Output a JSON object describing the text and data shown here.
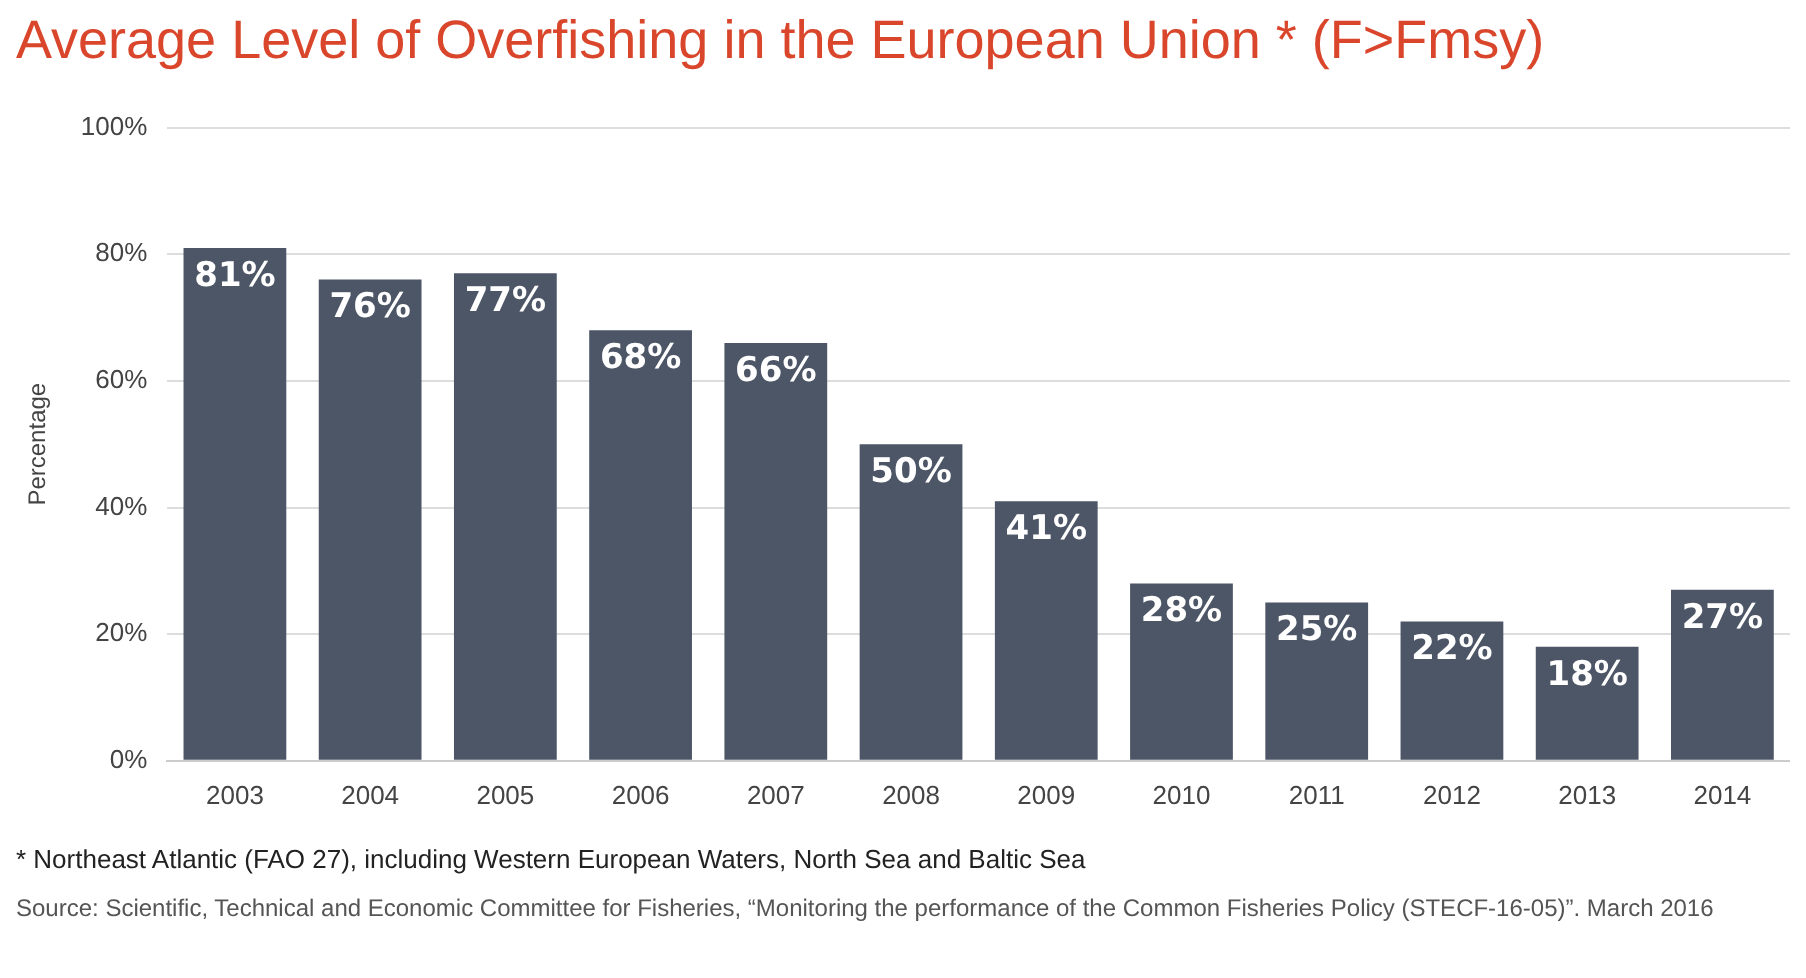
{
  "chart_data": {
    "type": "bar",
    "title": "Average Level of Overfishing in the European Union * (F>Fmsy)",
    "ylabel": "Percentage",
    "categories": [
      "2003",
      "2004",
      "2005",
      "2006",
      "2007",
      "2008",
      "2009",
      "2010",
      "2011",
      "2012",
      "2013",
      "2014"
    ],
    "values": [
      81,
      76,
      77,
      68,
      66,
      50,
      41,
      28,
      25,
      22,
      18,
      27
    ],
    "value_labels": [
      "81%",
      "76%",
      "77%",
      "68%",
      "66%",
      "50%",
      "41%",
      "28%",
      "25%",
      "22%",
      "18%",
      "27%"
    ],
    "color": "#4d5666",
    "ylim": [
      0,
      100
    ],
    "yticks": [
      {
        "value": 0,
        "label": "0%"
      },
      {
        "value": 20,
        "label": "20%"
      },
      {
        "value": 40,
        "label": "40%"
      },
      {
        "value": 60,
        "label": "60%"
      },
      {
        "value": 80,
        "label": "80%"
      },
      {
        "value": 100,
        "label": "100%"
      }
    ],
    "grid": "y",
    "annotations": [
      "*  Northeast Atlantic (FAO 27), including Western European Waters, North Sea and Baltic Sea",
      "Source: Scientific, Technical and Economic Committee for Fisheries, “Monitoring the performance of the Common Fisheries Policy (STECF-16-05)”. March 2016"
    ]
  }
}
